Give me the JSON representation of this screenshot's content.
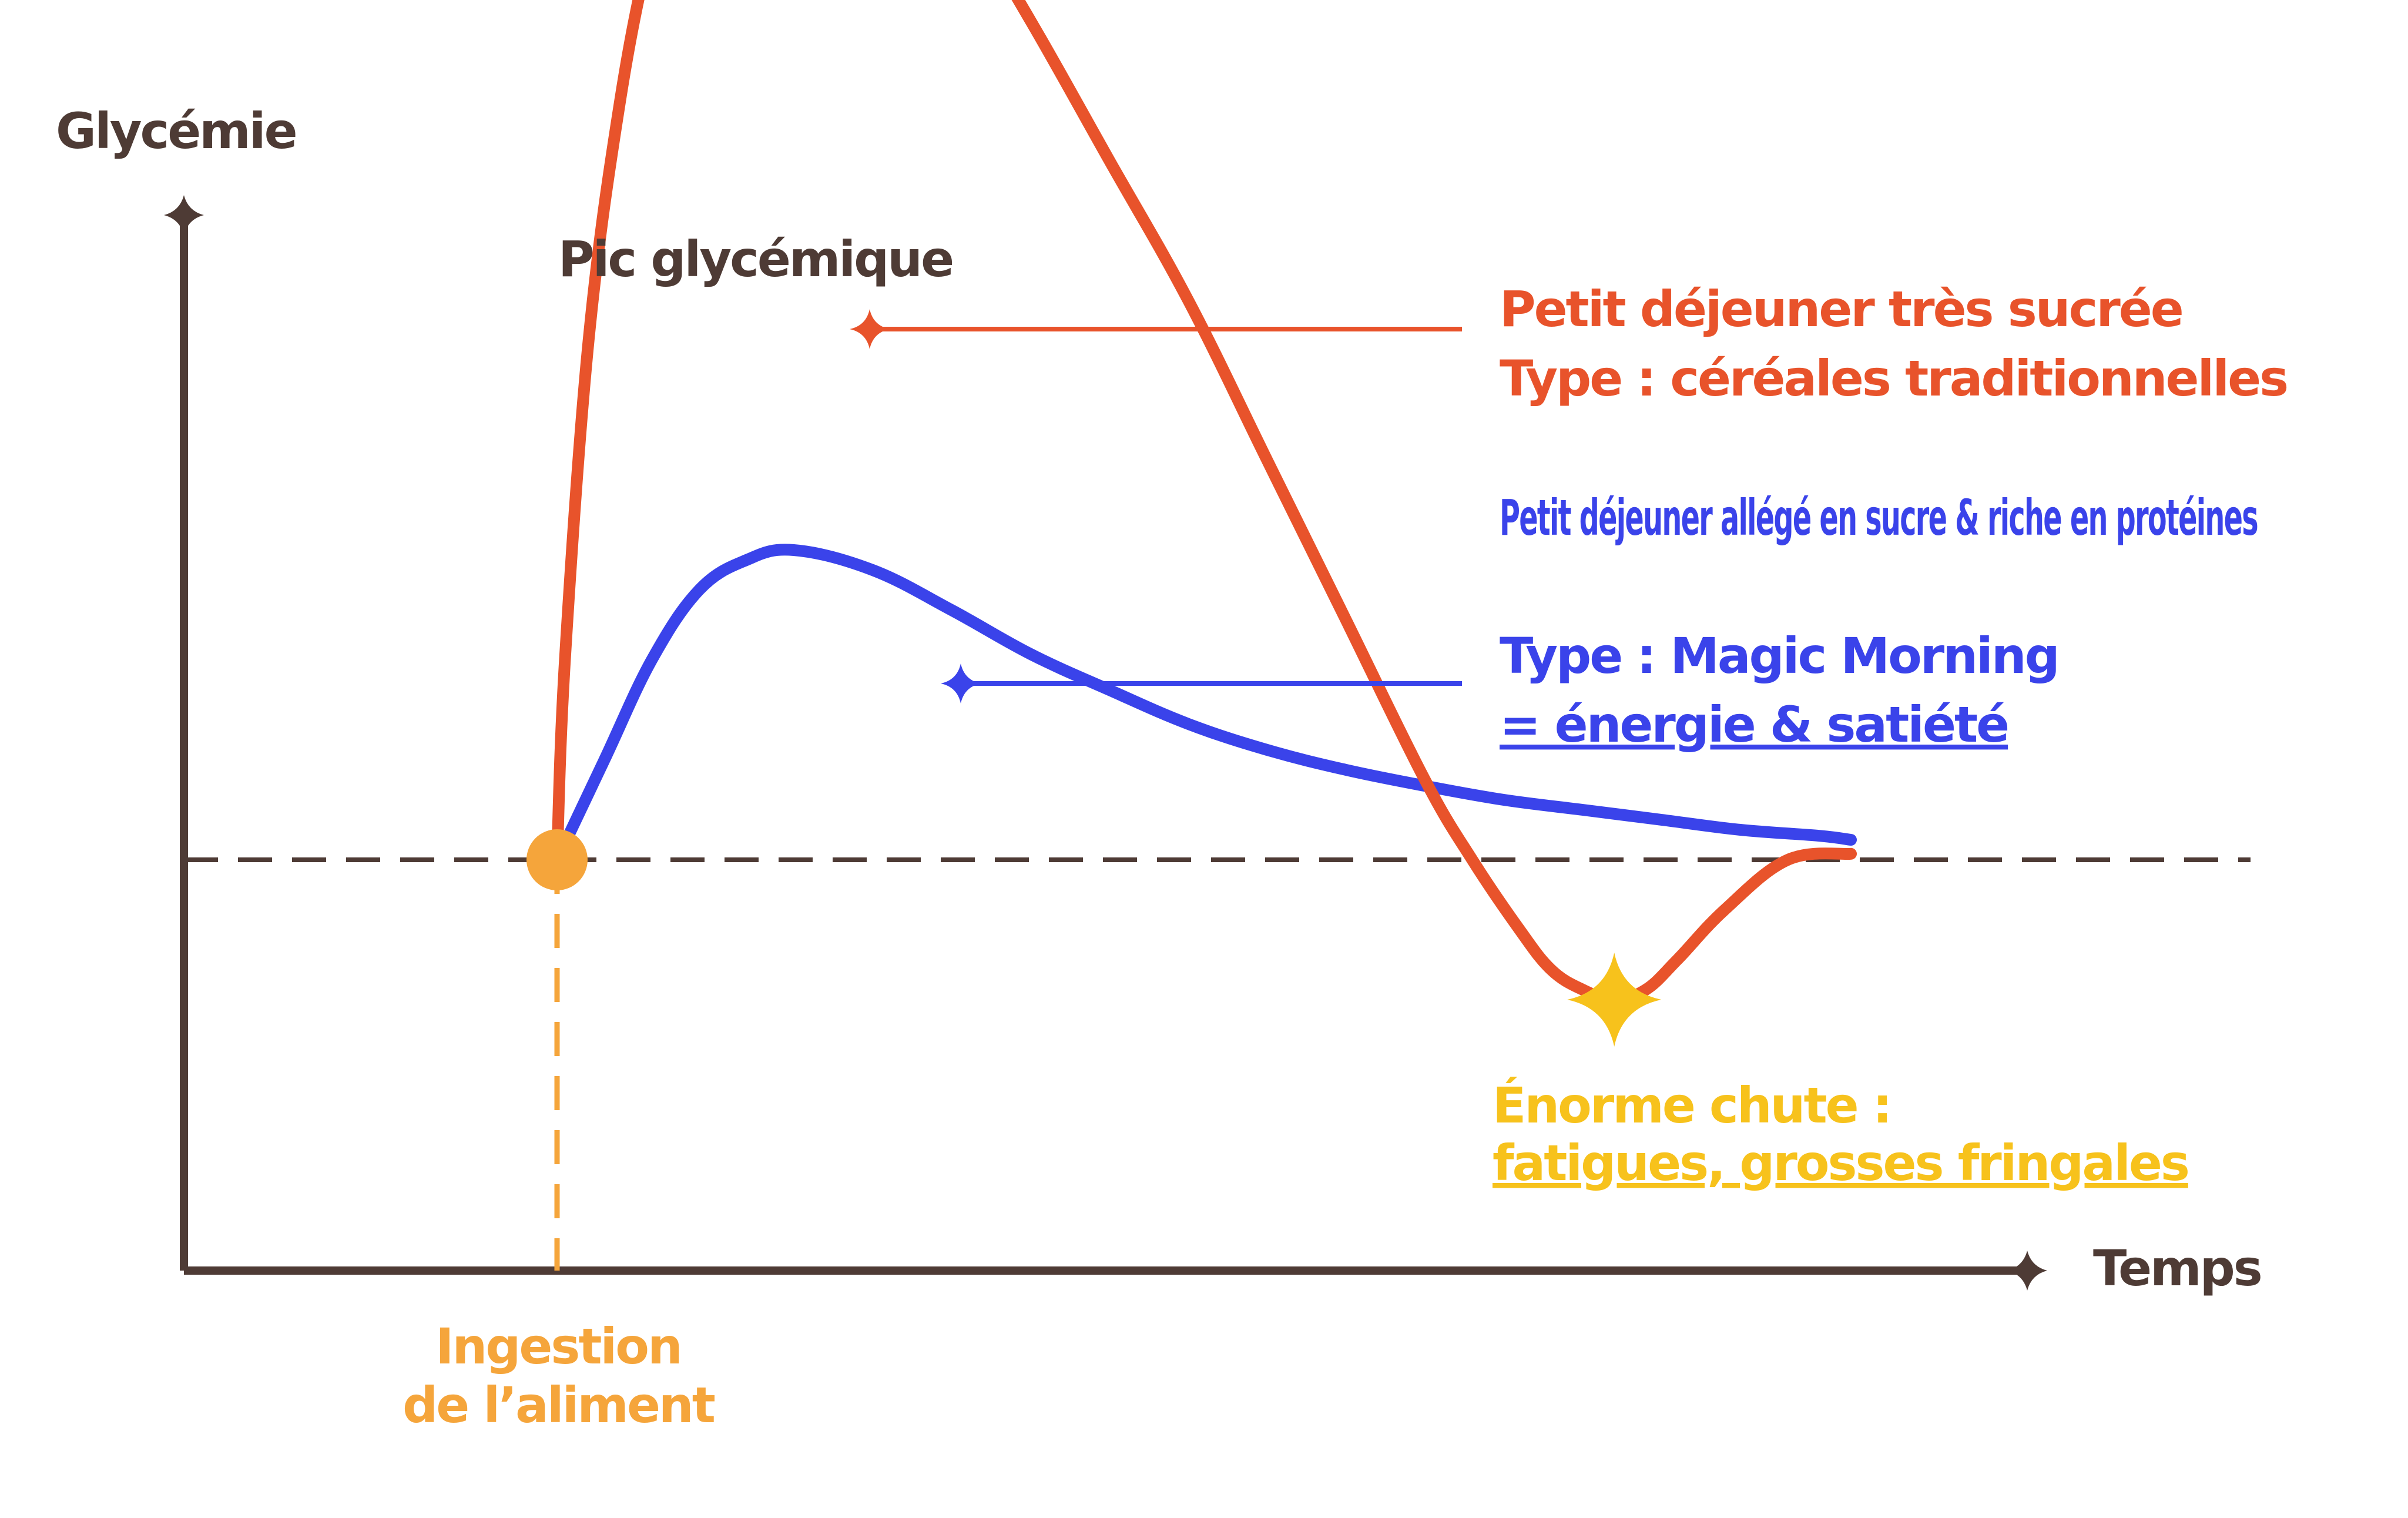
{
  "colors": {
    "axis": "#4e3b35",
    "sugary": "#e8532b",
    "protein": "#3a43ea",
    "ingestion": "#f5a53b",
    "crash": "#f7c21c",
    "baseline": "#4e3b35",
    "background": "#ffffff"
  },
  "chart_data": {
    "type": "line",
    "title": "",
    "xlabel": "Temps",
    "ylabel": "Glycémie",
    "xlim": [
      0,
      100
    ],
    "ylim": [
      0,
      100
    ],
    "grid": false,
    "baseline": 40,
    "series": [
      {
        "name": "Petit déjeuner très sucrée",
        "legend_line2": "Type : céréales traditionnelles",
        "color": "#e8532b",
        "x": [
          0,
          0.5,
          2,
          4,
          6,
          8,
          10,
          13,
          16,
          20,
          25,
          30,
          35,
          40,
          45,
          50,
          55,
          58,
          61,
          63,
          65,
          67,
          69,
          71,
          74,
          78,
          82
        ],
        "y": [
          40,
          50,
          66,
          78,
          86,
          91.5,
          94,
          95.5,
          95.6,
          94,
          88.5,
          82,
          75,
          68,
          60,
          52,
          44,
          40,
          36.5,
          34.5,
          33.5,
          33,
          33.5,
          35,
          37.5,
          40,
          40.3
        ]
      },
      {
        "name": "Petit déjeuner allégé en sucre & riche en protéines",
        "legend_line2": "Type : Magic Morning",
        "legend_line3": "= énergie & satiété",
        "color": "#3a43ea",
        "x": [
          0,
          3,
          6,
          9,
          12,
          15,
          20,
          25,
          30,
          35,
          40,
          45,
          50,
          55,
          60,
          65,
          70,
          75,
          80,
          82
        ],
        "y": [
          40,
          45,
          50,
          53.5,
          55,
          55.5,
          54.5,
          52.5,
          50.3,
          48.5,
          46.8,
          45.5,
          44.5,
          43.7,
          43,
          42.5,
          42,
          41.5,
          41.2,
          41
        ]
      }
    ],
    "annotations": {
      "peak": "Pic glycémique",
      "ingestion_line1": "Ingestion",
      "ingestion_line2": "de l’aliment",
      "crash_line1": "Énorme chute :",
      "crash_line2": "fatigues, grosses fringales"
    }
  }
}
